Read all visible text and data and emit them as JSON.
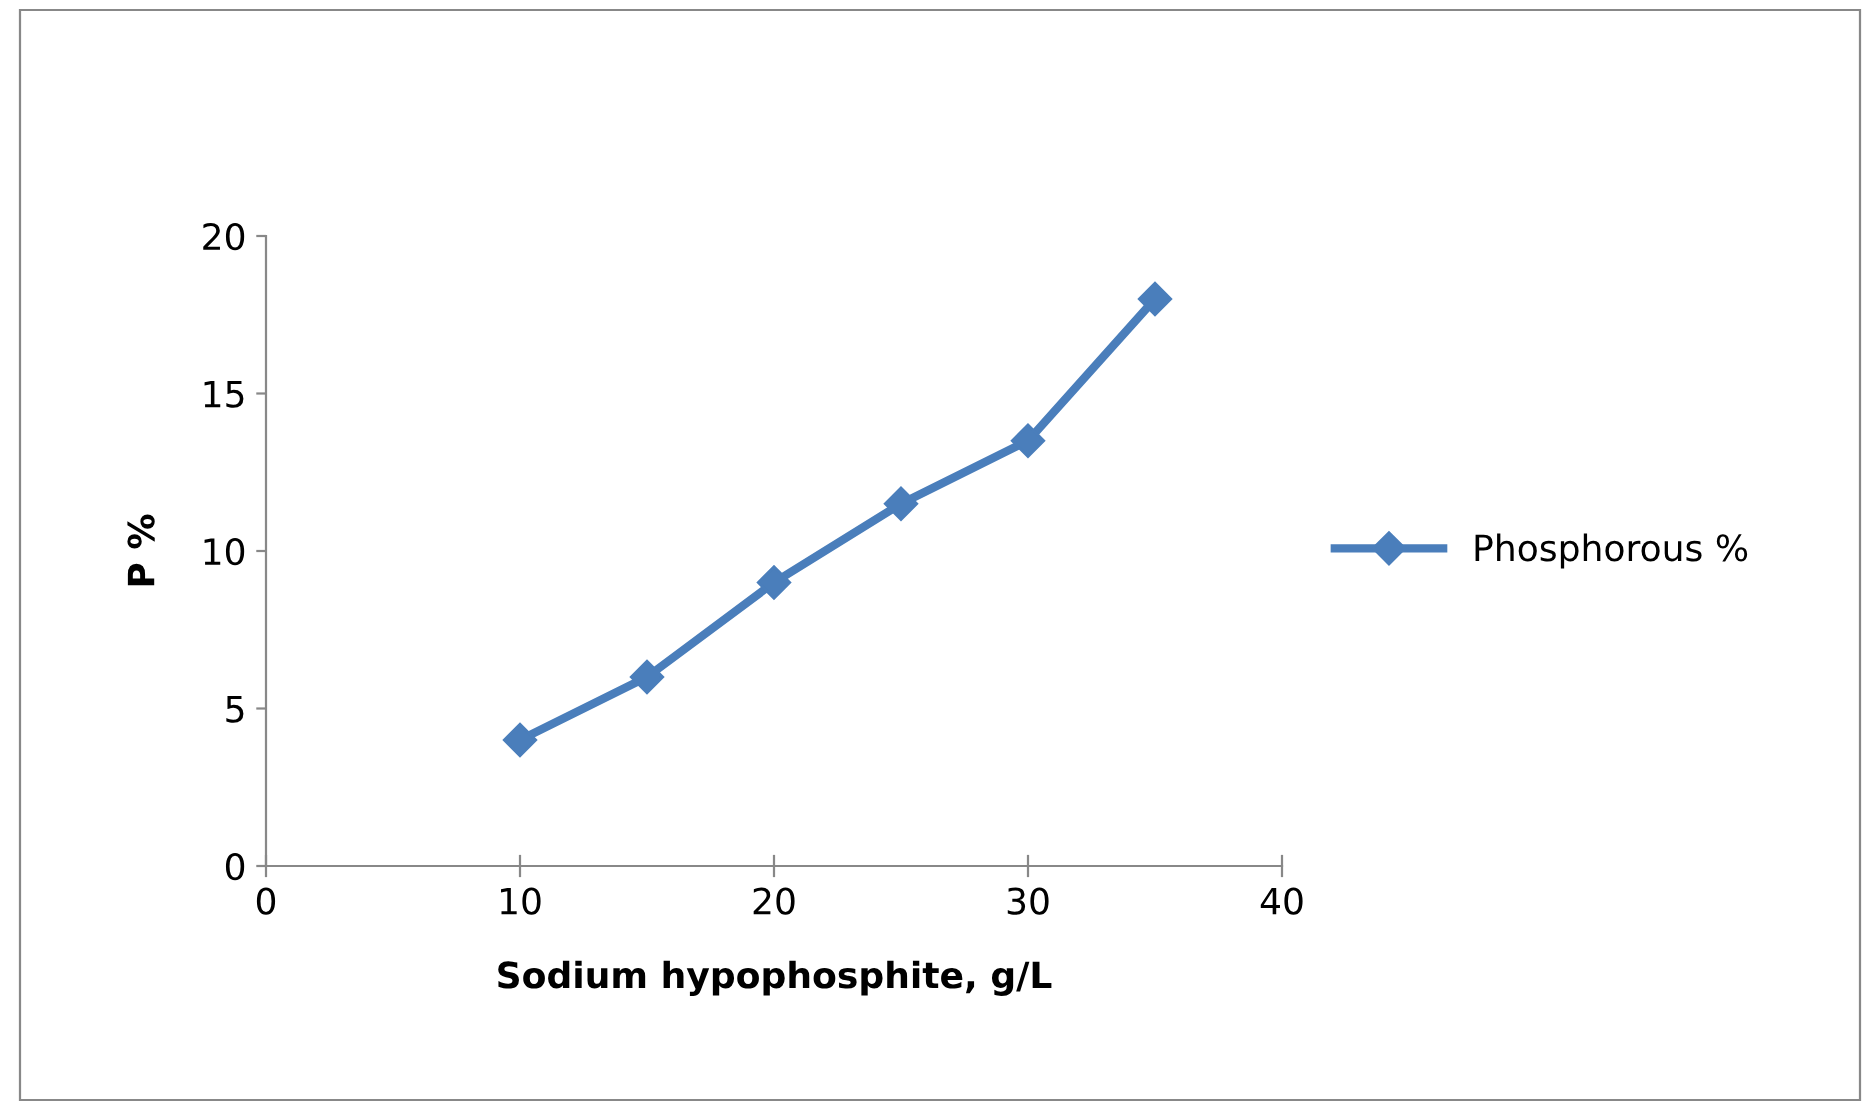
{
  "chart_data": {
    "type": "line",
    "xlabel": "Sodium hypophosphite, g/L",
    "ylabel": "P %",
    "x": [
      10,
      15,
      20,
      25,
      30,
      35
    ],
    "series": [
      {
        "name": "Phosphorous %",
        "color": "#4a7ebb",
        "values": [
          4,
          6,
          9,
          11.5,
          13.5,
          18
        ]
      }
    ],
    "xlim": [
      0,
      40
    ],
    "xticks": [
      0,
      10,
      20,
      30,
      40
    ],
    "ylim": [
      0,
      20
    ],
    "yticks": [
      0,
      5,
      10,
      15,
      20
    ],
    "grid": false,
    "legend": "right",
    "marker": "diamond",
    "line_style": "solid"
  }
}
